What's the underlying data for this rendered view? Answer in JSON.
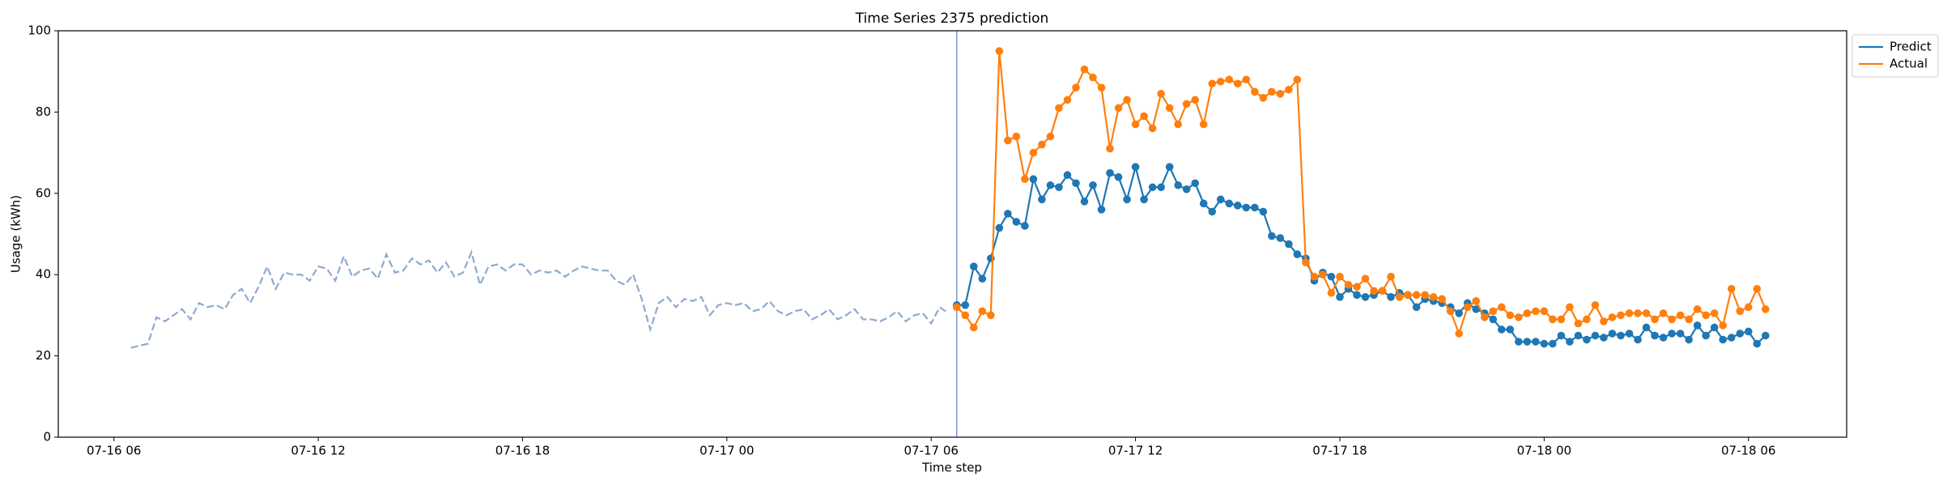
{
  "chart_data": {
    "type": "line",
    "title": "Time Series 2375 prediction",
    "xlabel": "Time step",
    "ylabel": "Usage (kWh)",
    "xlim": [
      "07-16 04:22",
      "07-18 08:53"
    ],
    "xticks": [
      "07-16 06",
      "07-16 12",
      "07-16 18",
      "07-17 00",
      "07-17 06",
      "07-17 12",
      "07-17 18",
      "07-18 00",
      "07-18 06"
    ],
    "ylim": [
      0,
      100
    ],
    "yticks": [
      0,
      20,
      40,
      60,
      80,
      100
    ],
    "grid": false,
    "legend": "outside upper right",
    "vline": "07-17 06:45",
    "vline_color": "#7b9bd0",
    "x": [
      "07-17 06:45",
      "07-17 07:00",
      "07-17 07:15",
      "07-17 07:30",
      "07-17 07:45",
      "07-17 08:00",
      "07-17 08:15",
      "07-17 08:30",
      "07-17 08:45",
      "07-17 09:00",
      "07-17 09:15",
      "07-17 09:30",
      "07-17 09:45",
      "07-17 10:00",
      "07-17 10:15",
      "07-17 10:30",
      "07-17 10:45",
      "07-17 11:00",
      "07-17 11:15",
      "07-17 11:30",
      "07-17 11:45",
      "07-17 12:00",
      "07-17 12:15",
      "07-17 12:30",
      "07-17 12:45",
      "07-17 13:00",
      "07-17 13:15",
      "07-17 13:30",
      "07-17 13:45",
      "07-17 14:00",
      "07-17 14:15",
      "07-17 14:30",
      "07-17 14:45",
      "07-17 15:00",
      "07-17 15:15",
      "07-17 15:30",
      "07-17 15:45",
      "07-17 16:00",
      "07-17 16:15",
      "07-17 16:30",
      "07-17 16:45",
      "07-17 17:00",
      "07-17 17:15",
      "07-17 17:30",
      "07-17 17:45",
      "07-17 18:00",
      "07-17 18:15",
      "07-17 18:30",
      "07-17 18:45",
      "07-17 19:00",
      "07-17 19:15",
      "07-17 19:30",
      "07-17 19:45",
      "07-17 20:00",
      "07-17 20:15",
      "07-17 20:30",
      "07-17 20:45",
      "07-17 21:00",
      "07-17 21:15",
      "07-17 21:30",
      "07-17 21:45",
      "07-17 22:00",
      "07-17 22:15",
      "07-17 22:30",
      "07-17 22:45",
      "07-17 23:00",
      "07-17 23:15",
      "07-17 23:30",
      "07-17 23:45",
      "07-18 00:00",
      "07-18 00:15",
      "07-18 00:30",
      "07-18 00:45",
      "07-18 01:00",
      "07-18 01:15",
      "07-18 01:30",
      "07-18 01:45",
      "07-18 02:00",
      "07-18 02:15",
      "07-18 02:30",
      "07-18 02:45",
      "07-18 03:00",
      "07-18 03:15",
      "07-18 03:30",
      "07-18 03:45",
      "07-18 04:00",
      "07-18 04:15",
      "07-18 04:30",
      "07-18 04:45",
      "07-18 05:00",
      "07-18 05:15",
      "07-18 05:30",
      "07-18 05:45",
      "07-18 06:00",
      "07-18 06:15",
      "07-18 06:30"
    ],
    "series": [
      {
        "color": "#8eaad0",
        "dashed": true,
        "markers": false,
        "x": [
          "07-16 06:30",
          "07-16 06:45",
          "07-16 07:00",
          "07-16 07:15",
          "07-16 07:30",
          "07-16 07:45",
          "07-16 08:00",
          "07-16 08:15",
          "07-16 08:30",
          "07-16 08:45",
          "07-16 09:00",
          "07-16 09:15",
          "07-16 09:30",
          "07-16 09:45",
          "07-16 10:00",
          "07-16 10:15",
          "07-16 10:30",
          "07-16 10:45",
          "07-16 11:00",
          "07-16 11:15",
          "07-16 11:30",
          "07-16 11:45",
          "07-16 12:00",
          "07-16 12:15",
          "07-16 12:30",
          "07-16 12:45",
          "07-16 13:00",
          "07-16 13:15",
          "07-16 13:30",
          "07-16 13:45",
          "07-16 14:00",
          "07-16 14:15",
          "07-16 14:30",
          "07-16 14:45",
          "07-16 15:00",
          "07-16 15:15",
          "07-16 15:30",
          "07-16 15:45",
          "07-16 16:00",
          "07-16 16:15",
          "07-16 16:30",
          "07-16 16:45",
          "07-16 17:00",
          "07-16 17:15",
          "07-16 17:30",
          "07-16 17:45",
          "07-16 18:00",
          "07-16 18:15",
          "07-16 18:30",
          "07-16 18:45",
          "07-16 19:00",
          "07-16 19:15",
          "07-16 19:30",
          "07-16 19:45",
          "07-16 20:00",
          "07-16 20:15",
          "07-16 20:30",
          "07-16 20:45",
          "07-16 21:00",
          "07-16 21:15",
          "07-16 21:30",
          "07-16 21:45",
          "07-16 22:00",
          "07-16 22:15",
          "07-16 22:30",
          "07-16 22:45",
          "07-16 23:00",
          "07-16 23:15",
          "07-16 23:30",
          "07-16 23:45",
          "07-17 00:00",
          "07-17 00:15",
          "07-17 00:30",
          "07-17 00:45",
          "07-17 01:00",
          "07-17 01:15",
          "07-17 01:30",
          "07-17 01:45",
          "07-17 02:00",
          "07-17 02:15",
          "07-17 02:30",
          "07-17 02:45",
          "07-17 03:00",
          "07-17 03:15",
          "07-17 03:30",
          "07-17 03:45",
          "07-17 04:00",
          "07-17 04:15",
          "07-17 04:30",
          "07-17 04:45",
          "07-17 05:00",
          "07-17 05:15",
          "07-17 05:30",
          "07-17 05:45",
          "07-17 06:00",
          "07-17 06:15",
          "07-17 06:30"
        ],
        "values": [
          22,
          22.5,
          23,
          29.5,
          28.5,
          30,
          31.5,
          29,
          33,
          32,
          32.5,
          31.5,
          35,
          36.5,
          33,
          37,
          42,
          36.5,
          40.5,
          40,
          40,
          38.5,
          42,
          41.5,
          38.5,
          44.5,
          39.5,
          41,
          41.5,
          39,
          45,
          40.5,
          41,
          44,
          42.5,
          43.5,
          40.5,
          43,
          39.5,
          40.5,
          45.5,
          37.5,
          42,
          42.5,
          41,
          42.5,
          42.5,
          40,
          41,
          40.5,
          41,
          39.5,
          41,
          42,
          41.5,
          41,
          41,
          38.5,
          37.5,
          40,
          34,
          26.5,
          33,
          34.5,
          32,
          34,
          33.5,
          34.5,
          30,
          32.5,
          33,
          32.5,
          33,
          31,
          31.5,
          33.5,
          31,
          30,
          31,
          31.5,
          29,
          30,
          31.5,
          29,
          30,
          31.5,
          29,
          29,
          28.5,
          29.5,
          31,
          28.5,
          30,
          30.5,
          28,
          32,
          30.5
        ]
      },
      {
        "name": "Predict",
        "color": "#1f77b4",
        "markers": true,
        "values": [
          32.5,
          32.5,
          42,
          39,
          44,
          51.5,
          55,
          53,
          52,
          63.5,
          58.5,
          62,
          61.5,
          64.5,
          62.5,
          58,
          62,
          56,
          65,
          64,
          58.5,
          66.5,
          58.5,
          61.5,
          61.5,
          66.5,
          62,
          61,
          62.5,
          57.5,
          55.5,
          58.5,
          57.5,
          57,
          56.5,
          56.5,
          55.5,
          49.5,
          49,
          47.5,
          45,
          44,
          38.5,
          40.5,
          39.5,
          34.5,
          36.5,
          35,
          34.5,
          35,
          36,
          34.5,
          35.5,
          35,
          32,
          34,
          33.5,
          33,
          32,
          30.5,
          33,
          31.5,
          30.5,
          29,
          26.5,
          26.5,
          23.5,
          23.5,
          23.5,
          23,
          23,
          25,
          23.5,
          25,
          24,
          25,
          24.5,
          25.5,
          25,
          25.5,
          24,
          27,
          25,
          24.5,
          25.5,
          25.5,
          24,
          27.5,
          25,
          27,
          24,
          24.5,
          25.5,
          26,
          23,
          25
        ]
      },
      {
        "name": "Actual",
        "color": "#ff7f0e",
        "markers": true,
        "values": [
          32,
          30,
          27,
          31,
          30,
          95,
          73,
          74,
          63.5,
          70,
          72,
          74,
          81,
          83,
          86,
          90.5,
          88.5,
          86,
          71,
          81,
          83,
          77,
          79,
          76,
          84.5,
          81,
          77,
          82,
          83,
          77,
          87,
          87.5,
          88,
          87,
          88,
          85,
          83.5,
          85,
          84.5,
          85.5,
          88,
          43,
          39.5,
          40,
          35.5,
          39.5,
          37.5,
          37,
          39,
          36,
          36,
          39.5,
          34.5,
          35,
          35,
          35,
          34.5,
          34,
          31,
          25.5,
          32,
          33.5,
          29.5,
          31,
          32,
          30,
          29.5,
          30.5,
          31,
          31,
          29,
          29,
          32,
          28,
          29,
          32.5,
          28.5,
          29.5,
          30,
          30.5,
          30.5,
          30.5,
          29,
          30.5,
          29,
          30,
          29,
          31.5,
          30,
          30.5,
          27.5,
          36.5,
          31,
          32,
          36.5,
          31.5
        ]
      }
    ]
  }
}
